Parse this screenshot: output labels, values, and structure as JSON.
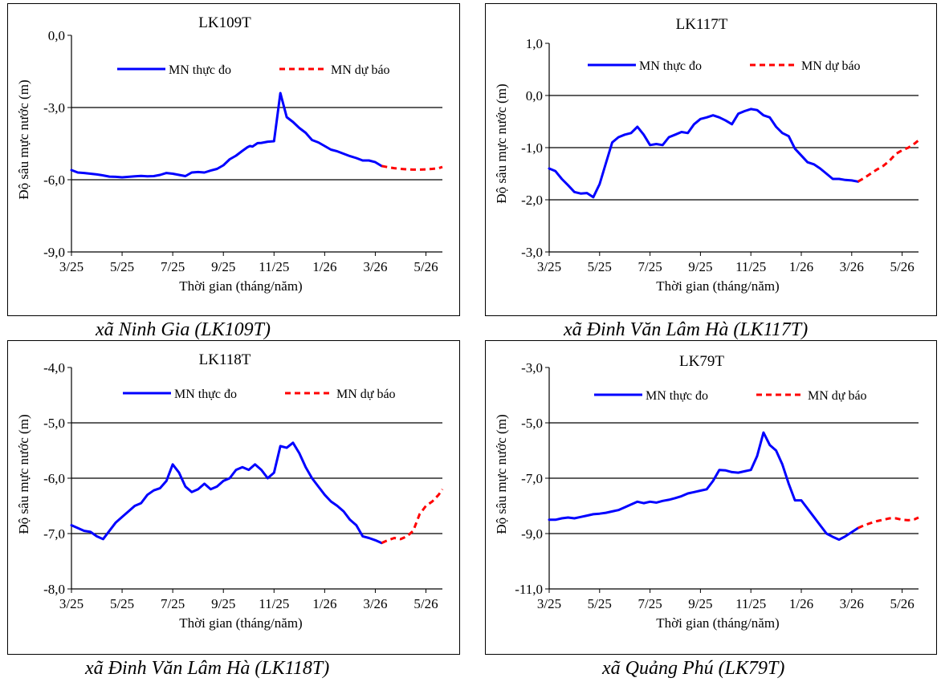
{
  "captions": [
    "xã Ninh Gia (LK109T)",
    "xã Đinh Văn Lâm Hà (LK117T)",
    "xã Đinh Văn Lâm Hà (LK118T)",
    "xã Quảng Phú (LK79T)"
  ],
  "chart_data": [
    {
      "type": "line",
      "title": "LK109T",
      "xlabel": "Thời gian  (tháng/năm)",
      "ylabel": "Độ sâu mực nước (m)",
      "ylim": [
        -9,
        0
      ],
      "yticks": [
        "0,0",
        "-3,0",
        "-6,0",
        "-9,0"
      ],
      "ytick_values": [
        0,
        -3,
        -6,
        -9
      ],
      "xticks": [
        "3/25",
        "5/25",
        "7/25",
        "9/25",
        "11/25",
        "1/26",
        "3/26",
        "5/26"
      ],
      "grid": "horizontal",
      "legend": "top",
      "series": [
        {
          "name": "MN thực đo",
          "color": "#0000ff",
          "style": "solid",
          "x": [
            0,
            0.5,
            1,
            1.5,
            2,
            2.5,
            3,
            3.5,
            4,
            4.5,
            5,
            5.5,
            6,
            6.5,
            7,
            7.5,
            8,
            8.5,
            9,
            9.5,
            10,
            10.5,
            11,
            11.5,
            12,
            12.5,
            13,
            13.5,
            13.9,
            14.1,
            14.3,
            14.7,
            15,
            15.5,
            16,
            16.5,
            17,
            17.5,
            18,
            18.5,
            19,
            19.5,
            20,
            20.5,
            21,
            21.5,
            22,
            22.5,
            23,
            23.5,
            24,
            24.5
          ],
          "y": [
            -5.6,
            -5.7,
            -5.72,
            -5.75,
            -5.78,
            -5.82,
            -5.87,
            -5.88,
            -5.9,
            -5.88,
            -5.86,
            -5.84,
            -5.86,
            -5.85,
            -5.8,
            -5.72,
            -5.75,
            -5.8,
            -5.85,
            -5.7,
            -5.68,
            -5.7,
            -5.62,
            -5.55,
            -5.4,
            -5.15,
            -5.0,
            -4.8,
            -4.65,
            -4.6,
            -4.62,
            -4.48,
            -4.47,
            -4.42,
            -4.4,
            -2.4,
            -3.4,
            -3.6,
            -3.85,
            -4.05,
            -4.35,
            -4.45,
            -4.6,
            -4.75,
            -4.82,
            -4.92,
            -5.02,
            -5.1,
            -5.2,
            -5.2,
            -5.27,
            -5.43
          ]
        },
        {
          "name": "MN dự báo",
          "color": "#ff0000",
          "style": "dashed",
          "x": [
            24.5,
            25,
            25.5,
            26,
            26.5,
            27,
            27.5,
            28,
            28.5,
            29,
            29.3
          ],
          "y": [
            -5.43,
            -5.48,
            -5.52,
            -5.55,
            -5.57,
            -5.58,
            -5.58,
            -5.57,
            -5.55,
            -5.52,
            -5.47
          ]
        }
      ]
    },
    {
      "type": "line",
      "title": "LK117T",
      "xlabel": "Thời gian  (tháng/năm)",
      "ylabel": "Độ sâu mực nước (m)",
      "ylim": [
        -3,
        1
      ],
      "yticks": [
        "1,0",
        "0,0",
        "-1,0",
        "-2,0",
        "-3,0"
      ],
      "ytick_values": [
        1,
        0,
        -1,
        -2,
        -3
      ],
      "xticks": [
        "3/25",
        "5/25",
        "7/25",
        "9/25",
        "11/25",
        "1/26",
        "3/26",
        "5/26"
      ],
      "grid": "horizontal",
      "legend": "top",
      "series": [
        {
          "name": "MN thực đo",
          "color": "#0000ff",
          "style": "solid",
          "x": [
            0,
            0.5,
            1,
            1.5,
            2,
            2.5,
            3,
            3.5,
            4,
            4.5,
            5,
            5.5,
            6,
            6.5,
            7,
            7.5,
            8,
            8.5,
            9,
            9.5,
            10,
            10.5,
            11,
            11.5,
            12,
            12.5,
            13,
            13.5,
            14,
            14.5,
            15,
            15.5,
            16,
            16.5,
            17,
            17.5,
            18,
            18.5,
            19,
            19.5,
            20,
            20.5,
            21,
            21.5,
            22,
            22.5,
            23,
            23.5,
            24,
            24.5
          ],
          "y": [
            -1.4,
            -1.45,
            -1.6,
            -1.72,
            -1.85,
            -1.88,
            -1.87,
            -1.95,
            -1.7,
            -1.3,
            -0.9,
            -0.8,
            -0.75,
            -0.72,
            -0.6,
            -0.75,
            -0.95,
            -0.93,
            -0.95,
            -0.8,
            -0.75,
            -0.7,
            -0.72,
            -0.55,
            -0.45,
            -0.42,
            -0.38,
            -0.42,
            -0.48,
            -0.55,
            -0.35,
            -0.3,
            -0.26,
            -0.28,
            -0.38,
            -0.42,
            -0.6,
            -0.72,
            -0.78,
            -1.02,
            -1.15,
            -1.28,
            -1.32,
            -1.4,
            -1.5,
            -1.6,
            -1.6,
            -1.62,
            -1.63,
            -1.65
          ]
        },
        {
          "name": "MN dự báo",
          "color": "#ff0000",
          "style": "dashed",
          "x": [
            24.5,
            25,
            25.5,
            26,
            26.5,
            27,
            27.5,
            28,
            28.5,
            29,
            29.3
          ],
          "y": [
            -1.65,
            -1.58,
            -1.5,
            -1.42,
            -1.35,
            -1.25,
            -1.12,
            -1.05,
            -1.0,
            -0.92,
            -0.86
          ]
        }
      ]
    },
    {
      "type": "line",
      "title": "LK118T",
      "xlabel": "Thời gian  (tháng/năm)",
      "ylabel": "Độ sâu mực nước (m)",
      "ylim": [
        -8,
        -4
      ],
      "yticks": [
        "-4,0",
        "-5,0",
        "-6,0",
        "-7,0",
        "-8,0"
      ],
      "ytick_values": [
        -4,
        -5,
        -6,
        -7,
        -8
      ],
      "xticks": [
        "3/25",
        "5/25",
        "7/25",
        "9/25",
        "11/25",
        "1/26",
        "3/26",
        "5/26"
      ],
      "grid": "horizontal",
      "legend": "top",
      "series": [
        {
          "name": "MN thực đo",
          "color": "#0000ff",
          "style": "solid",
          "x": [
            0,
            0.5,
            1,
            1.5,
            2,
            2.5,
            3,
            3.5,
            4,
            4.5,
            5,
            5.5,
            6,
            6.5,
            7,
            7.5,
            8,
            8.5,
            9,
            9.5,
            10,
            10.5,
            11,
            11.5,
            12,
            12.5,
            13,
            13.5,
            14,
            14.5,
            15,
            15.5,
            16,
            16.5,
            17,
            17.5,
            18,
            18.5,
            19,
            19.5,
            20,
            20.5,
            21,
            21.5,
            22,
            22.5,
            23,
            23.5,
            24,
            24.5
          ],
          "y": [
            -6.85,
            -6.9,
            -6.95,
            -6.97,
            -7.05,
            -7.1,
            -6.95,
            -6.8,
            -6.7,
            -6.6,
            -6.5,
            -6.45,
            -6.3,
            -6.22,
            -6.18,
            -6.05,
            -5.75,
            -5.9,
            -6.15,
            -6.25,
            -6.2,
            -6.1,
            -6.2,
            -6.15,
            -6.05,
            -6.0,
            -5.85,
            -5.8,
            -5.85,
            -5.75,
            -5.85,
            -6.0,
            -5.9,
            -5.42,
            -5.45,
            -5.36,
            -5.55,
            -5.8,
            -6.0,
            -6.15,
            -6.3,
            -6.42,
            -6.5,
            -6.6,
            -6.75,
            -6.85,
            -7.05,
            -7.08,
            -7.12,
            -7.17
          ]
        },
        {
          "name": "MN dự báo",
          "color": "#ff0000",
          "style": "dashed",
          "x": [
            24.5,
            25,
            25.5,
            26,
            26.5,
            27,
            27.5,
            28,
            28.5,
            29,
            29.3
          ],
          "y": [
            -7.17,
            -7.12,
            -7.08,
            -7.1,
            -7.05,
            -6.95,
            -6.65,
            -6.5,
            -6.42,
            -6.3,
            -6.2
          ]
        }
      ]
    },
    {
      "type": "line",
      "title": "LK79T",
      "xlabel": "Thời gian  (tháng/năm)",
      "ylabel": "Độ sâu mực nước (m)",
      "ylim": [
        -11,
        -3
      ],
      "yticks": [
        "-3,0",
        "-5,0",
        "-7,0",
        "-9,0",
        "-11,0"
      ],
      "ytick_values": [
        -3,
        -5,
        -7,
        -9,
        -11
      ],
      "xticks": [
        "3/25",
        "5/25",
        "7/25",
        "9/25",
        "11/25",
        "1/26",
        "3/26",
        "5/26"
      ],
      "grid": "horizontal",
      "legend": "top",
      "series": [
        {
          "name": "MN thực đo",
          "color": "#0000ff",
          "style": "solid",
          "x": [
            0,
            0.5,
            1,
            1.5,
            2,
            2.5,
            3,
            3.5,
            4,
            4.5,
            5,
            5.5,
            6,
            6.5,
            7,
            7.5,
            8,
            8.5,
            9,
            9.5,
            10,
            10.5,
            11,
            11.5,
            12,
            12.5,
            13,
            13.5,
            14,
            14.5,
            15,
            15.5,
            16,
            16.5,
            17,
            17.5,
            18,
            18.5,
            19,
            19.5,
            20,
            20.5,
            21,
            21.5,
            22,
            22.5,
            23,
            23.5,
            24,
            24.5
          ],
          "y": [
            -8.5,
            -8.5,
            -8.45,
            -8.42,
            -8.45,
            -8.4,
            -8.35,
            -8.3,
            -8.28,
            -8.25,
            -8.2,
            -8.15,
            -8.05,
            -7.95,
            -7.85,
            -7.9,
            -7.85,
            -7.88,
            -7.82,
            -7.78,
            -7.72,
            -7.65,
            -7.55,
            -7.5,
            -7.45,
            -7.4,
            -7.1,
            -6.7,
            -6.72,
            -6.78,
            -6.8,
            -6.75,
            -6.7,
            -6.2,
            -5.35,
            -5.8,
            -6.0,
            -6.5,
            -7.2,
            -7.8,
            -7.8,
            -8.1,
            -8.4,
            -8.7,
            -9.0,
            -9.12,
            -9.22,
            -9.1,
            -8.95,
            -8.8
          ]
        },
        {
          "name": "MN dự báo",
          "color": "#ff0000",
          "style": "dashed",
          "x": [
            24.5,
            25,
            25.5,
            26,
            26.5,
            27,
            27.5,
            28,
            28.5,
            29,
            29.3
          ],
          "y": [
            -8.8,
            -8.7,
            -8.62,
            -8.55,
            -8.5,
            -8.45,
            -8.45,
            -8.5,
            -8.52,
            -8.48,
            -8.42
          ]
        }
      ]
    }
  ]
}
